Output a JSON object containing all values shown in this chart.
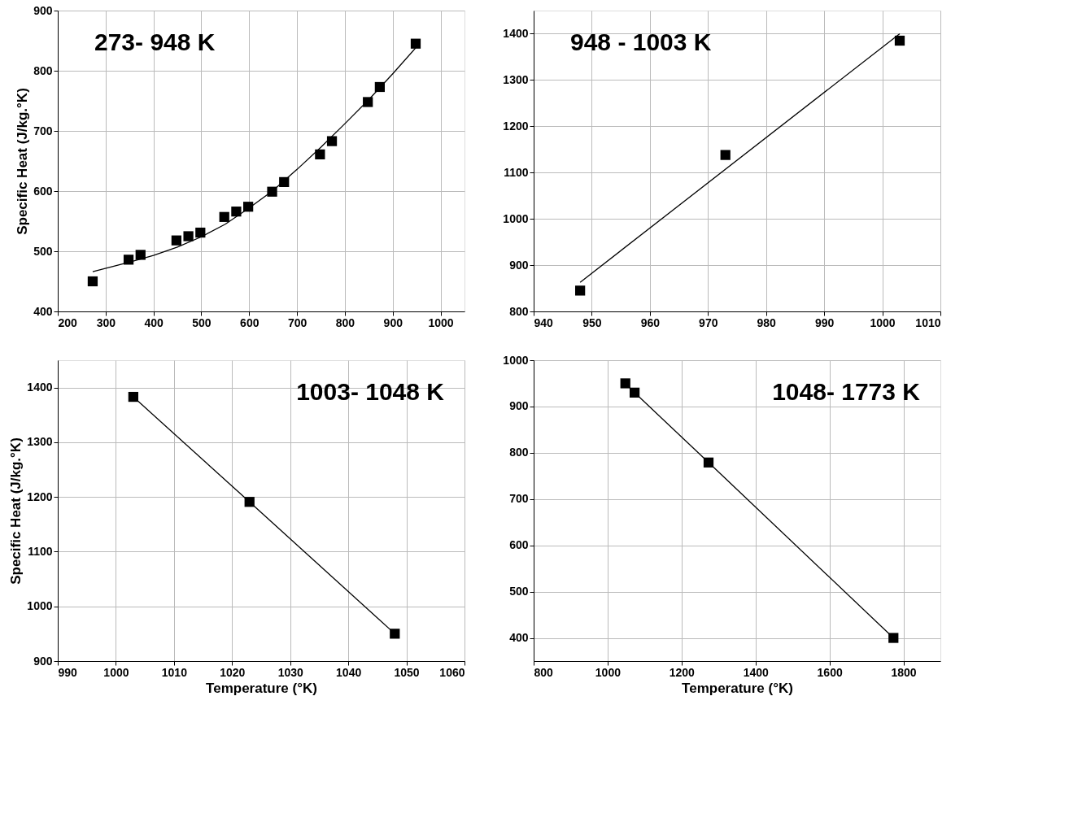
{
  "chart_data": [
    {
      "type": "scatter",
      "ylabel": "Specific Heat (J/kg.°K)",
      "annotations": [
        "273- 948 K"
      ],
      "xlim": [
        200,
        1050
      ],
      "xticks": [
        200,
        300,
        400,
        500,
        600,
        700,
        800,
        900,
        1000
      ],
      "ylim": [
        400,
        900
      ],
      "yticks": [
        400,
        500,
        600,
        700,
        800,
        900
      ],
      "grid": true,
      "series": [
        {
          "marker": "square",
          "color": "#000000",
          "x": [
            273,
            348,
            373,
            448,
            473,
            498,
            548,
            573,
            598,
            648,
            673,
            748,
            773,
            848,
            873,
            948
          ],
          "values": [
            450,
            486,
            494,
            518,
            525,
            531,
            557,
            566,
            574,
            599,
            615,
            661,
            683,
            748,
            773,
            845
          ]
        },
        {
          "type": "line",
          "color": "#000000",
          "x": [
            273,
            350,
            400,
            450,
            500,
            550,
            600,
            650,
            700,
            750,
            800,
            850,
            900,
            948
          ],
          "values": [
            466,
            482,
            493,
            507,
            524,
            545,
            572,
            601,
            636,
            673,
            712,
            752,
            795,
            838
          ]
        }
      ]
    },
    {
      "type": "scatter",
      "annotations": [
        "948 - 1003 K"
      ],
      "xlim": [
        940,
        1010
      ],
      "xticks": [
        940,
        950,
        960,
        970,
        980,
        990,
        1000,
        1010
      ],
      "ylim": [
        800,
        1450
      ],
      "yticks": [
        800,
        900,
        1000,
        1100,
        1200,
        1300,
        1400
      ],
      "grid": true,
      "series": [
        {
          "marker": "square",
          "color": "#000000",
          "x": [
            948,
            973,
            1003
          ],
          "values": [
            845,
            1138,
            1385
          ]
        },
        {
          "type": "line",
          "color": "#000000",
          "x": [
            948,
            1003
          ],
          "values": [
            863,
            1400
          ]
        }
      ]
    },
    {
      "type": "line",
      "ylabel": "Specific Heat (J/kg.°K)",
      "xlabel": "Temperature (°K)",
      "annotations": [
        "1003- 1048 K"
      ],
      "xlim": [
        990,
        1060
      ],
      "xticks": [
        990,
        1000,
        1010,
        1020,
        1030,
        1040,
        1050,
        1060
      ],
      "ylim": [
        900,
        1450
      ],
      "yticks": [
        900,
        1000,
        1100,
        1200,
        1300,
        1400
      ],
      "grid": true,
      "series": [
        {
          "marker": "square",
          "color": "#000000",
          "x": [
            1003,
            1023,
            1048
          ],
          "values": [
            1383,
            1191,
            950
          ]
        }
      ]
    },
    {
      "type": "line",
      "xlabel": "Temperature (°K)",
      "annotations": [
        "1048- 1773 K"
      ],
      "xlim": [
        800,
        1900
      ],
      "xticks": [
        800,
        1000,
        1200,
        1400,
        1600,
        1800
      ],
      "ylim": [
        350,
        1000
      ],
      "yticks": [
        400,
        500,
        600,
        700,
        800,
        900,
        1000
      ],
      "grid": true,
      "series": [
        {
          "marker": "square",
          "color": "#000000",
          "x": [
            1048,
            1073,
            1273,
            1773
          ],
          "values": [
            950,
            930,
            779,
            400
          ]
        }
      ]
    }
  ]
}
